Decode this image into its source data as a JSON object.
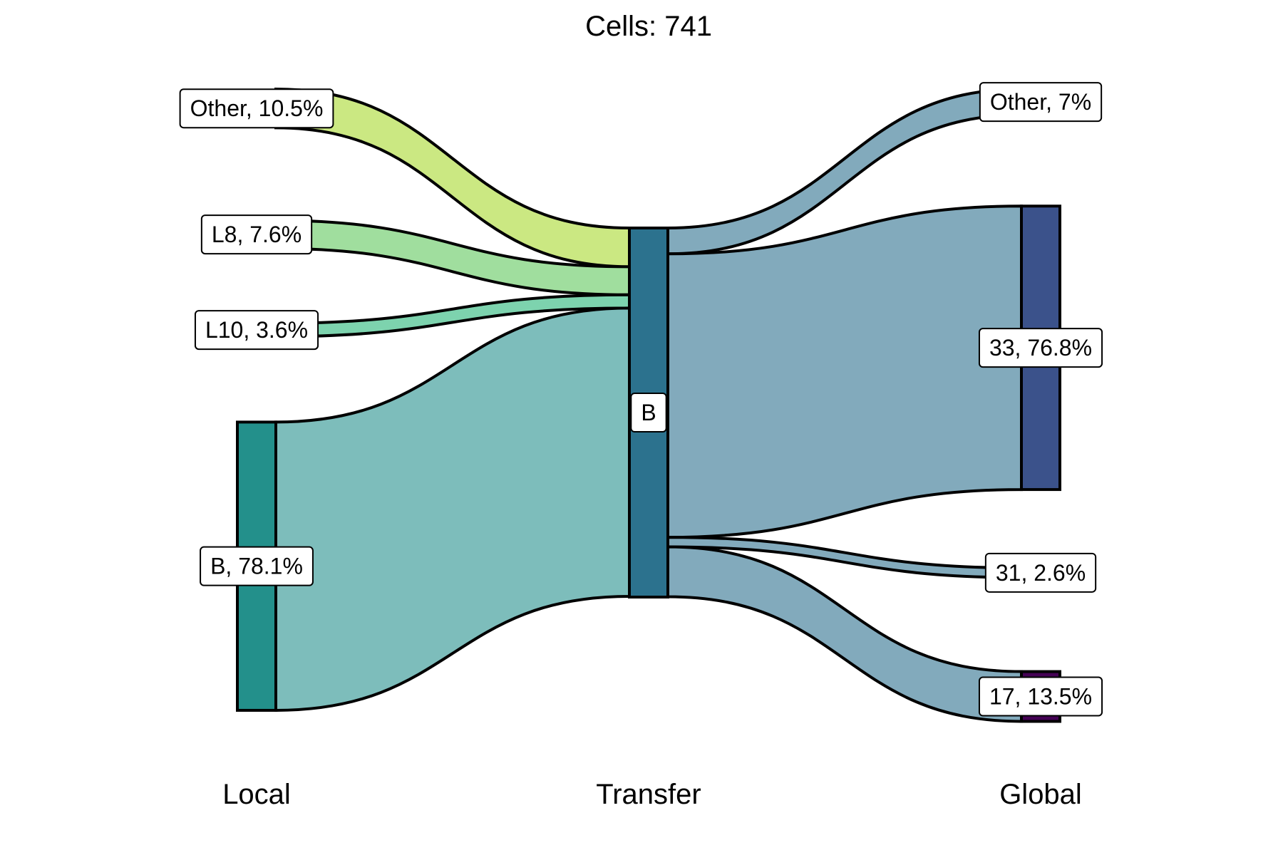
{
  "chart_data": {
    "type": "sankey",
    "title": "Cells:  741",
    "axes": [
      "Local",
      "Transfer",
      "Global"
    ],
    "left_nodes": [
      {
        "name": "Other",
        "label": "Other, 10.5%",
        "percent": 10.5,
        "color": "#cbe882",
        "flow_color": "#cbe882"
      },
      {
        "name": "L8",
        "label": "L8, 7.6%",
        "percent": 7.6,
        "color": "#a0de9e",
        "flow_color": "#a0de9e"
      },
      {
        "name": "L10",
        "label": "L10, 3.6%",
        "percent": 3.6,
        "color": "#7dd3ae",
        "flow_color": "#7dd3ae"
      },
      {
        "name": "B",
        "label": "B, 78.1%",
        "percent": 78.1,
        "color": "#23908b",
        "flow_color": "#7dbdbb"
      }
    ],
    "middle_node": {
      "name": "B",
      "label": "B",
      "percent": 100,
      "color": "#2c728e"
    },
    "right_nodes": [
      {
        "name": "Other",
        "label": "Other, 7%",
        "percent": 7.0,
        "color": "#82aabc",
        "flow_color": "#82aabc"
      },
      {
        "name": "33",
        "label": "33, 76.8%",
        "percent": 76.8,
        "color": "#3b528b",
        "flow_color": "#82aabc"
      },
      {
        "name": "31",
        "label": "31, 2.6%",
        "percent": 2.6,
        "color": "#82aabc",
        "flow_color": "#82aabc"
      },
      {
        "name": "17",
        "label": "17, 13.5%",
        "percent": 13.5,
        "color": "#440154",
        "flow_color": "#82aabc"
      }
    ]
  }
}
